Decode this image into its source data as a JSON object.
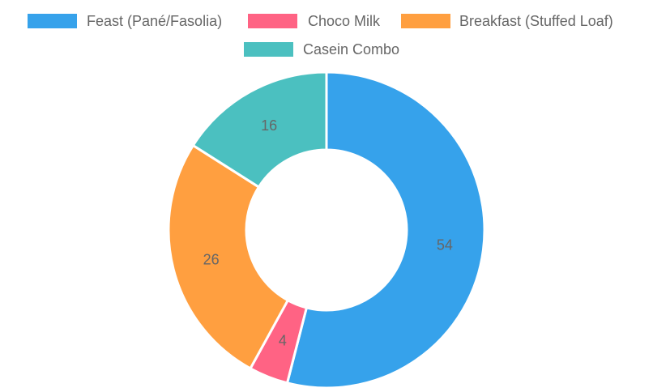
{
  "chart_data": {
    "type": "pie",
    "variant": "doughnut",
    "legend_position": "top",
    "categories": [
      "Feast (Pané/Fasolia)",
      "Choco Milk",
      "Breakfast (Stuffed Loaf)",
      "Casein Combo"
    ],
    "values": [
      54,
      4,
      26,
      16
    ],
    "colors": [
      "#36a2eb",
      "#ff6384",
      "#ff9f40",
      "#4bc0c0"
    ]
  }
}
